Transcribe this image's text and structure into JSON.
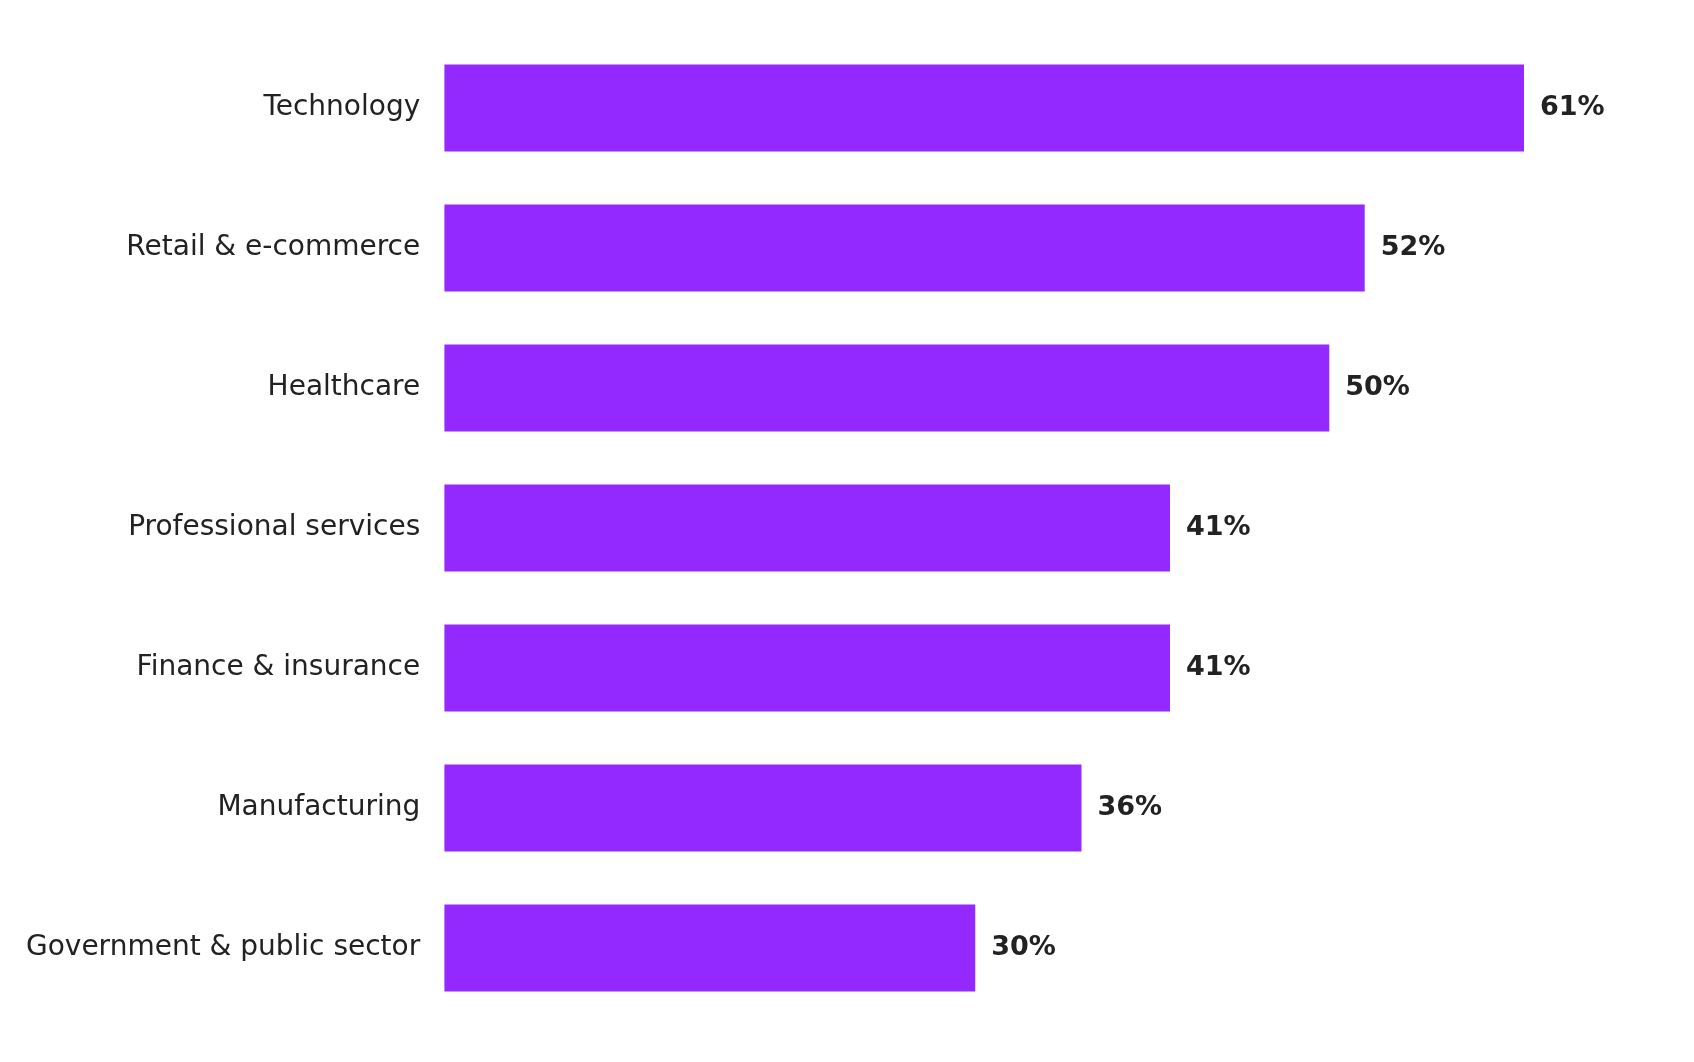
{
  "chart_data": {
    "type": "bar",
    "orientation": "horizontal",
    "categories": [
      "Technology",
      "Retail & e-commerce",
      "Healthcare",
      "Professional services",
      "Finance & insurance",
      "Manufacturing",
      "Government & public sector"
    ],
    "values": [
      61,
      52,
      50,
      41,
      41,
      36,
      30
    ],
    "value_labels": [
      "61%",
      "52%",
      "50%",
      "41%",
      "41%",
      "36%",
      "30%"
    ],
    "color": "#9328ff",
    "grid": false,
    "legend": false
  }
}
